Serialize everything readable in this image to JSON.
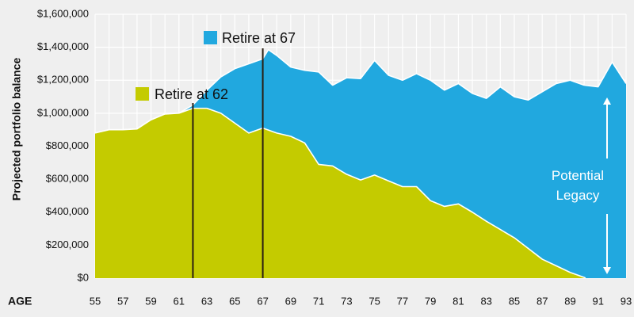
{
  "chart_data": {
    "type": "area",
    "xlabel": "AGE",
    "ylabel": "Projected portfolio balance",
    "xlim": [
      55,
      93
    ],
    "ylim": [
      0,
      1600000
    ],
    "x_ticks": [
      55,
      57,
      59,
      61,
      63,
      65,
      67,
      69,
      71,
      73,
      75,
      77,
      79,
      81,
      83,
      85,
      87,
      89,
      91,
      93
    ],
    "y_ticks": [
      0,
      200000,
      400000,
      600000,
      800000,
      1000000,
      1200000,
      1400000,
      1600000
    ],
    "y_tick_labels": [
      "$0",
      "$200,000",
      "$400,000",
      "$600,000",
      "$800,000",
      "$1,000,000",
      "$1,200,000",
      "$1,400,000",
      "$1,600,000"
    ],
    "grid": true,
    "series": [
      {
        "name": "Retire at 67",
        "color": "#21a8df",
        "points": [
          [
            55,
            880000
          ],
          [
            56,
            900000
          ],
          [
            57,
            900000
          ],
          [
            58,
            905000
          ],
          [
            59,
            960000
          ],
          [
            60,
            995000
          ],
          [
            61,
            1000000
          ],
          [
            62,
            1050000
          ],
          [
            63,
            1140000
          ],
          [
            64,
            1220000
          ],
          [
            65,
            1270000
          ],
          [
            66,
            1300000
          ],
          [
            67,
            1330000
          ],
          [
            67.4,
            1385000
          ],
          [
            68,
            1350000
          ],
          [
            69,
            1280000
          ],
          [
            70,
            1260000
          ],
          [
            71,
            1250000
          ],
          [
            72,
            1170000
          ],
          [
            73,
            1215000
          ],
          [
            74,
            1210000
          ],
          [
            75,
            1320000
          ],
          [
            76,
            1230000
          ],
          [
            77,
            1200000
          ],
          [
            78,
            1240000
          ],
          [
            79,
            1200000
          ],
          [
            80,
            1140000
          ],
          [
            81,
            1180000
          ],
          [
            82,
            1120000
          ],
          [
            83,
            1090000
          ],
          [
            84,
            1160000
          ],
          [
            85,
            1100000
          ],
          [
            86,
            1080000
          ],
          [
            87,
            1130000
          ],
          [
            88,
            1180000
          ],
          [
            89,
            1200000
          ],
          [
            90,
            1170000
          ],
          [
            91,
            1160000
          ],
          [
            92,
            1310000
          ],
          [
            93,
            1180000
          ]
        ]
      },
      {
        "name": "Retire at 62",
        "color": "#c4cb00",
        "points": [
          [
            55,
            880000
          ],
          [
            56,
            900000
          ],
          [
            57,
            900000
          ],
          [
            58,
            905000
          ],
          [
            59,
            960000
          ],
          [
            60,
            995000
          ],
          [
            61,
            1000000
          ],
          [
            62,
            1030000
          ],
          [
            63,
            1030000
          ],
          [
            64,
            1000000
          ],
          [
            65,
            940000
          ],
          [
            66,
            880000
          ],
          [
            67,
            910000
          ],
          [
            68,
            880000
          ],
          [
            69,
            860000
          ],
          [
            70,
            820000
          ],
          [
            71,
            690000
          ],
          [
            72,
            680000
          ],
          [
            73,
            630000
          ],
          [
            74,
            595000
          ],
          [
            75,
            625000
          ],
          [
            76,
            590000
          ],
          [
            77,
            555000
          ],
          [
            78,
            555000
          ],
          [
            79,
            470000
          ],
          [
            80,
            435000
          ],
          [
            81,
            450000
          ],
          [
            82,
            400000
          ],
          [
            83,
            345000
          ],
          [
            84,
            295000
          ],
          [
            85,
            245000
          ],
          [
            86,
            180000
          ],
          [
            87,
            115000
          ],
          [
            88,
            75000
          ],
          [
            89,
            35000
          ],
          [
            90,
            5000
          ],
          [
            90.1,
            0
          ]
        ]
      }
    ],
    "markers": [
      {
        "label": "Retire at 67",
        "x": 67
      },
      {
        "label": "Retire at 62",
        "x": 62
      }
    ],
    "annotation": {
      "lines": [
        "Potential",
        "Legacy"
      ],
      "range": [
        1100000,
        0
      ]
    }
  }
}
